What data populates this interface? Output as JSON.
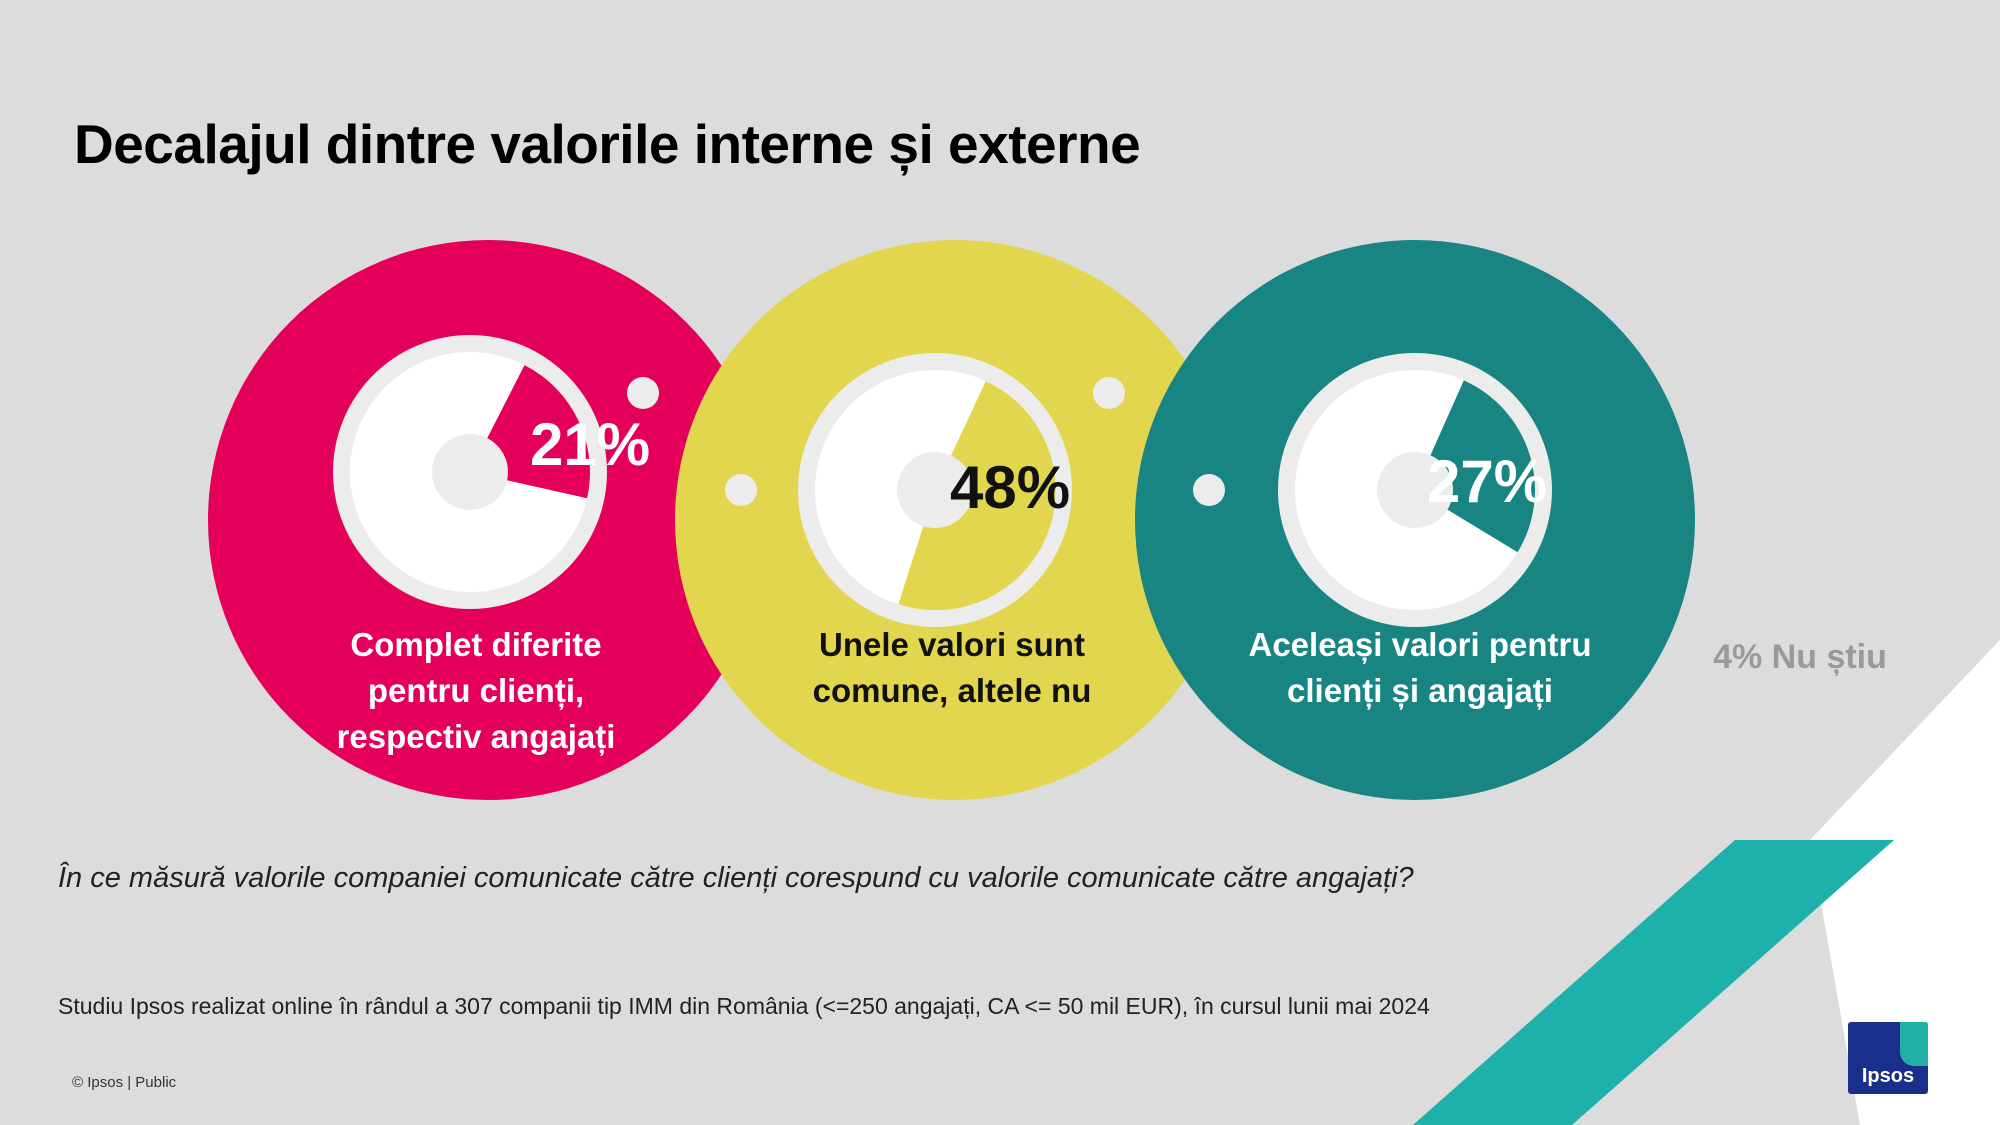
{
  "title": "Decalajul dintre valorile interne și externe",
  "question": "În ce măsură valorile companiei comunicate către clienți corespund cu valorile comunicate către angajați?",
  "source": "Studiu Ipsos realizat online în rândul a 307 companii tip IMM din România (<=250 angajați, CA <= 50 mil EUR), în cursul lunii mai 2024",
  "copyright": "© Ipsos | Public",
  "logo_text": "Ipsos",
  "unknown_label": "4% Nu știu",
  "colors": {
    "background": "#dcdcdc",
    "magenta": "#e4005a",
    "yellow": "#e3d64f",
    "teal": "#188582",
    "accent_teal": "#1eb0ab",
    "logo_blue": "#1a2e8c"
  },
  "chart_data": {
    "type": "pie",
    "title": "Decalajul dintre valorile interne și externe",
    "categories": [
      "Complet diferite pentru clienți, respectiv angajați",
      "Unele valori sunt comune, altele nu",
      "Aceleași valori pentru clienți și angajați",
      "Nu știu"
    ],
    "values": [
      21,
      48,
      27,
      4
    ],
    "value_labels": [
      "21%",
      "48%",
      "27%",
      "4%"
    ],
    "unit": "%",
    "items": [
      {
        "label_lines": [
          "Complet diferite",
          "pentru clienți,",
          "respectiv angajați"
        ],
        "value": 21,
        "value_label": "21%",
        "color": "#e4005a",
        "label_color": "#ffffff",
        "value_color": "#ffffff"
      },
      {
        "label_lines": [
          "Unele valori sunt",
          "comune, altele nu"
        ],
        "value": 48,
        "value_label": "48%",
        "color": "#e3d64f",
        "label_color": "#111111",
        "value_color": "#111111"
      },
      {
        "label_lines": [
          "Aceleași valori pentru",
          "clienți și angajați"
        ],
        "value": 27,
        "value_label": "27%",
        "color": "#188582",
        "label_color": "#ffffff",
        "value_color": "#ffffff"
      }
    ]
  }
}
